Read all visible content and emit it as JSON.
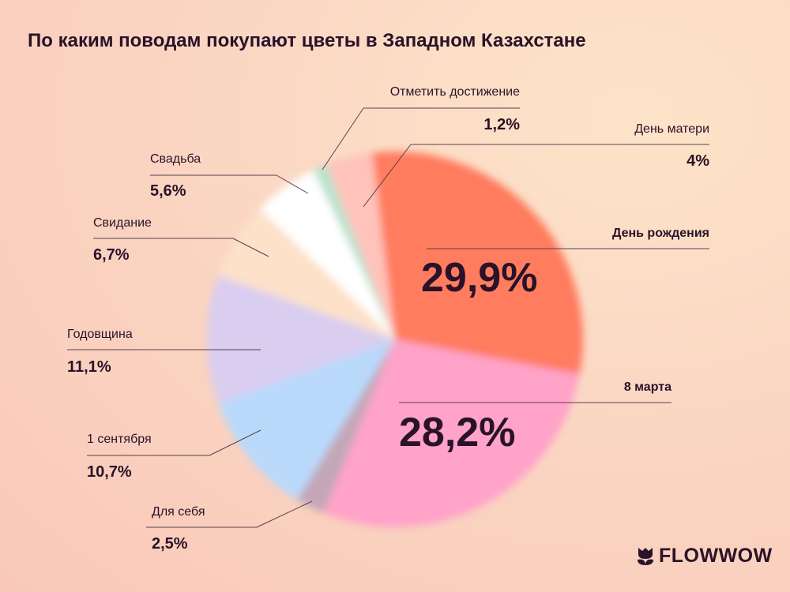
{
  "chart_data": {
    "type": "pie",
    "title": "По каким поводам покупают цветы в Западном Казахстане",
    "unit": "%",
    "slices": [
      {
        "label": "День рождения",
        "value": 29.9,
        "display": "29,9%",
        "color": "#ff7b5e"
      },
      {
        "label": "8 марта",
        "value": 28.2,
        "display": "28,2%",
        "color": "#ffa3c9"
      },
      {
        "label": "Для себя",
        "value": 2.5,
        "display": "2,5%",
        "color": "#c3a7b7"
      },
      {
        "label": "1 сентября",
        "value": 10.7,
        "display": "10,7%",
        "color": "#b9d9fb"
      },
      {
        "label": "Годовщина",
        "value": 11.1,
        "display": "11,1%",
        "color": "#d9cdf0"
      },
      {
        "label": "Свидание",
        "value": 6.7,
        "display": "6,7%",
        "color": "#fde1c9"
      },
      {
        "label": "Свадьба",
        "value": 5.6,
        "display": "5,6%",
        "color": "#ffffff"
      },
      {
        "label": "Отметить достижение",
        "value": 1.2,
        "display": "1,2%",
        "color": "#b9e2cd"
      },
      {
        "label": "День матери",
        "value": 4,
        "display": "4%",
        "color": "#ffc3bb"
      }
    ]
  },
  "brand": "FLOWWOW"
}
